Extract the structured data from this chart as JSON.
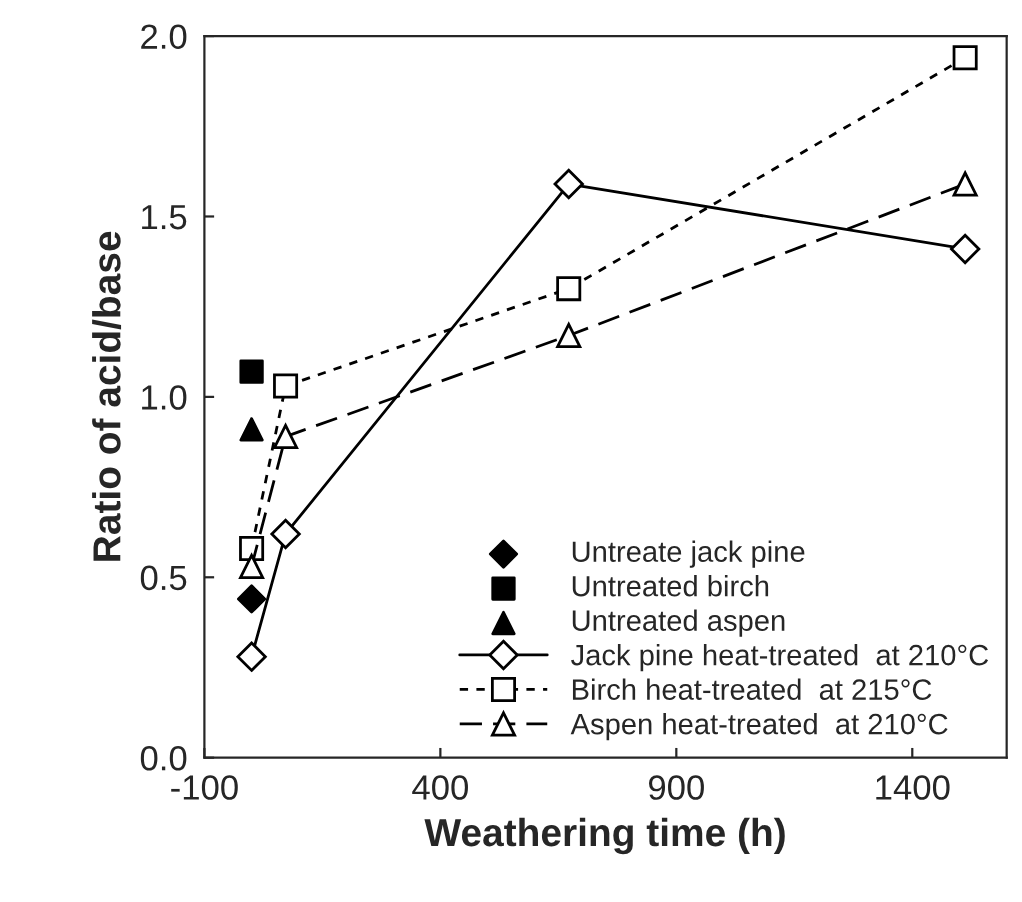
{
  "chart_data": {
    "type": "line",
    "xlabel": "Weathering time (h)",
    "ylabel": "Ratio of acid/base",
    "xlim": [
      -100,
      1600
    ],
    "xticks": [
      -100,
      400,
      900,
      1400
    ],
    "ylim": [
      0,
      2
    ],
    "yticks": [
      {
        "value": 0,
        "label": "0.0"
      },
      {
        "value": 0.5,
        "label": "0.5"
      },
      {
        "value": 1,
        "label": "1.0"
      },
      {
        "value": 1.5,
        "label": "1.5"
      },
      {
        "value": 2,
        "label": "2.0"
      }
    ],
    "grid": false,
    "legend": "bottom right",
    "series": [
      {
        "name": "Untreate jack pine",
        "type": "scatter",
        "marker": "diamond",
        "color": "#000000",
        "x": [
          0
        ],
        "values": [
          0.44
        ]
      },
      {
        "name": "Untreated birch",
        "type": "scatter",
        "marker": "square",
        "color": "#000000",
        "x": [
          0
        ],
        "values": [
          1.07
        ]
      },
      {
        "name": "Untreated aspen",
        "type": "scatter",
        "marker": "triangle",
        "color": "#000000",
        "x": [
          0
        ],
        "values": [
          0.91
        ]
      },
      {
        "name": "Jack pine heat-treated  at 210°C",
        "marker": "diamond",
        "line_style": "solid",
        "color": "#000000",
        "x": [
          0,
          72,
          672,
          1512
        ],
        "values": [
          0.28,
          0.62,
          1.59,
          1.41
        ]
      },
      {
        "name": "Birch heat-treated  at 215°C",
        "marker": "square",
        "line_style": "dotted",
        "color": "#000000",
        "x": [
          0,
          72,
          672,
          1512
        ],
        "values": [
          0.58,
          1.03,
          1.3,
          1.94
        ]
      },
      {
        "name": "Aspen heat-treated  at 210°C",
        "marker": "triangle",
        "line_style": "dashed",
        "color": "#000000",
        "x": [
          0,
          72,
          672,
          1512
        ],
        "values": [
          0.53,
          0.89,
          1.17,
          1.59
        ]
      }
    ]
  }
}
